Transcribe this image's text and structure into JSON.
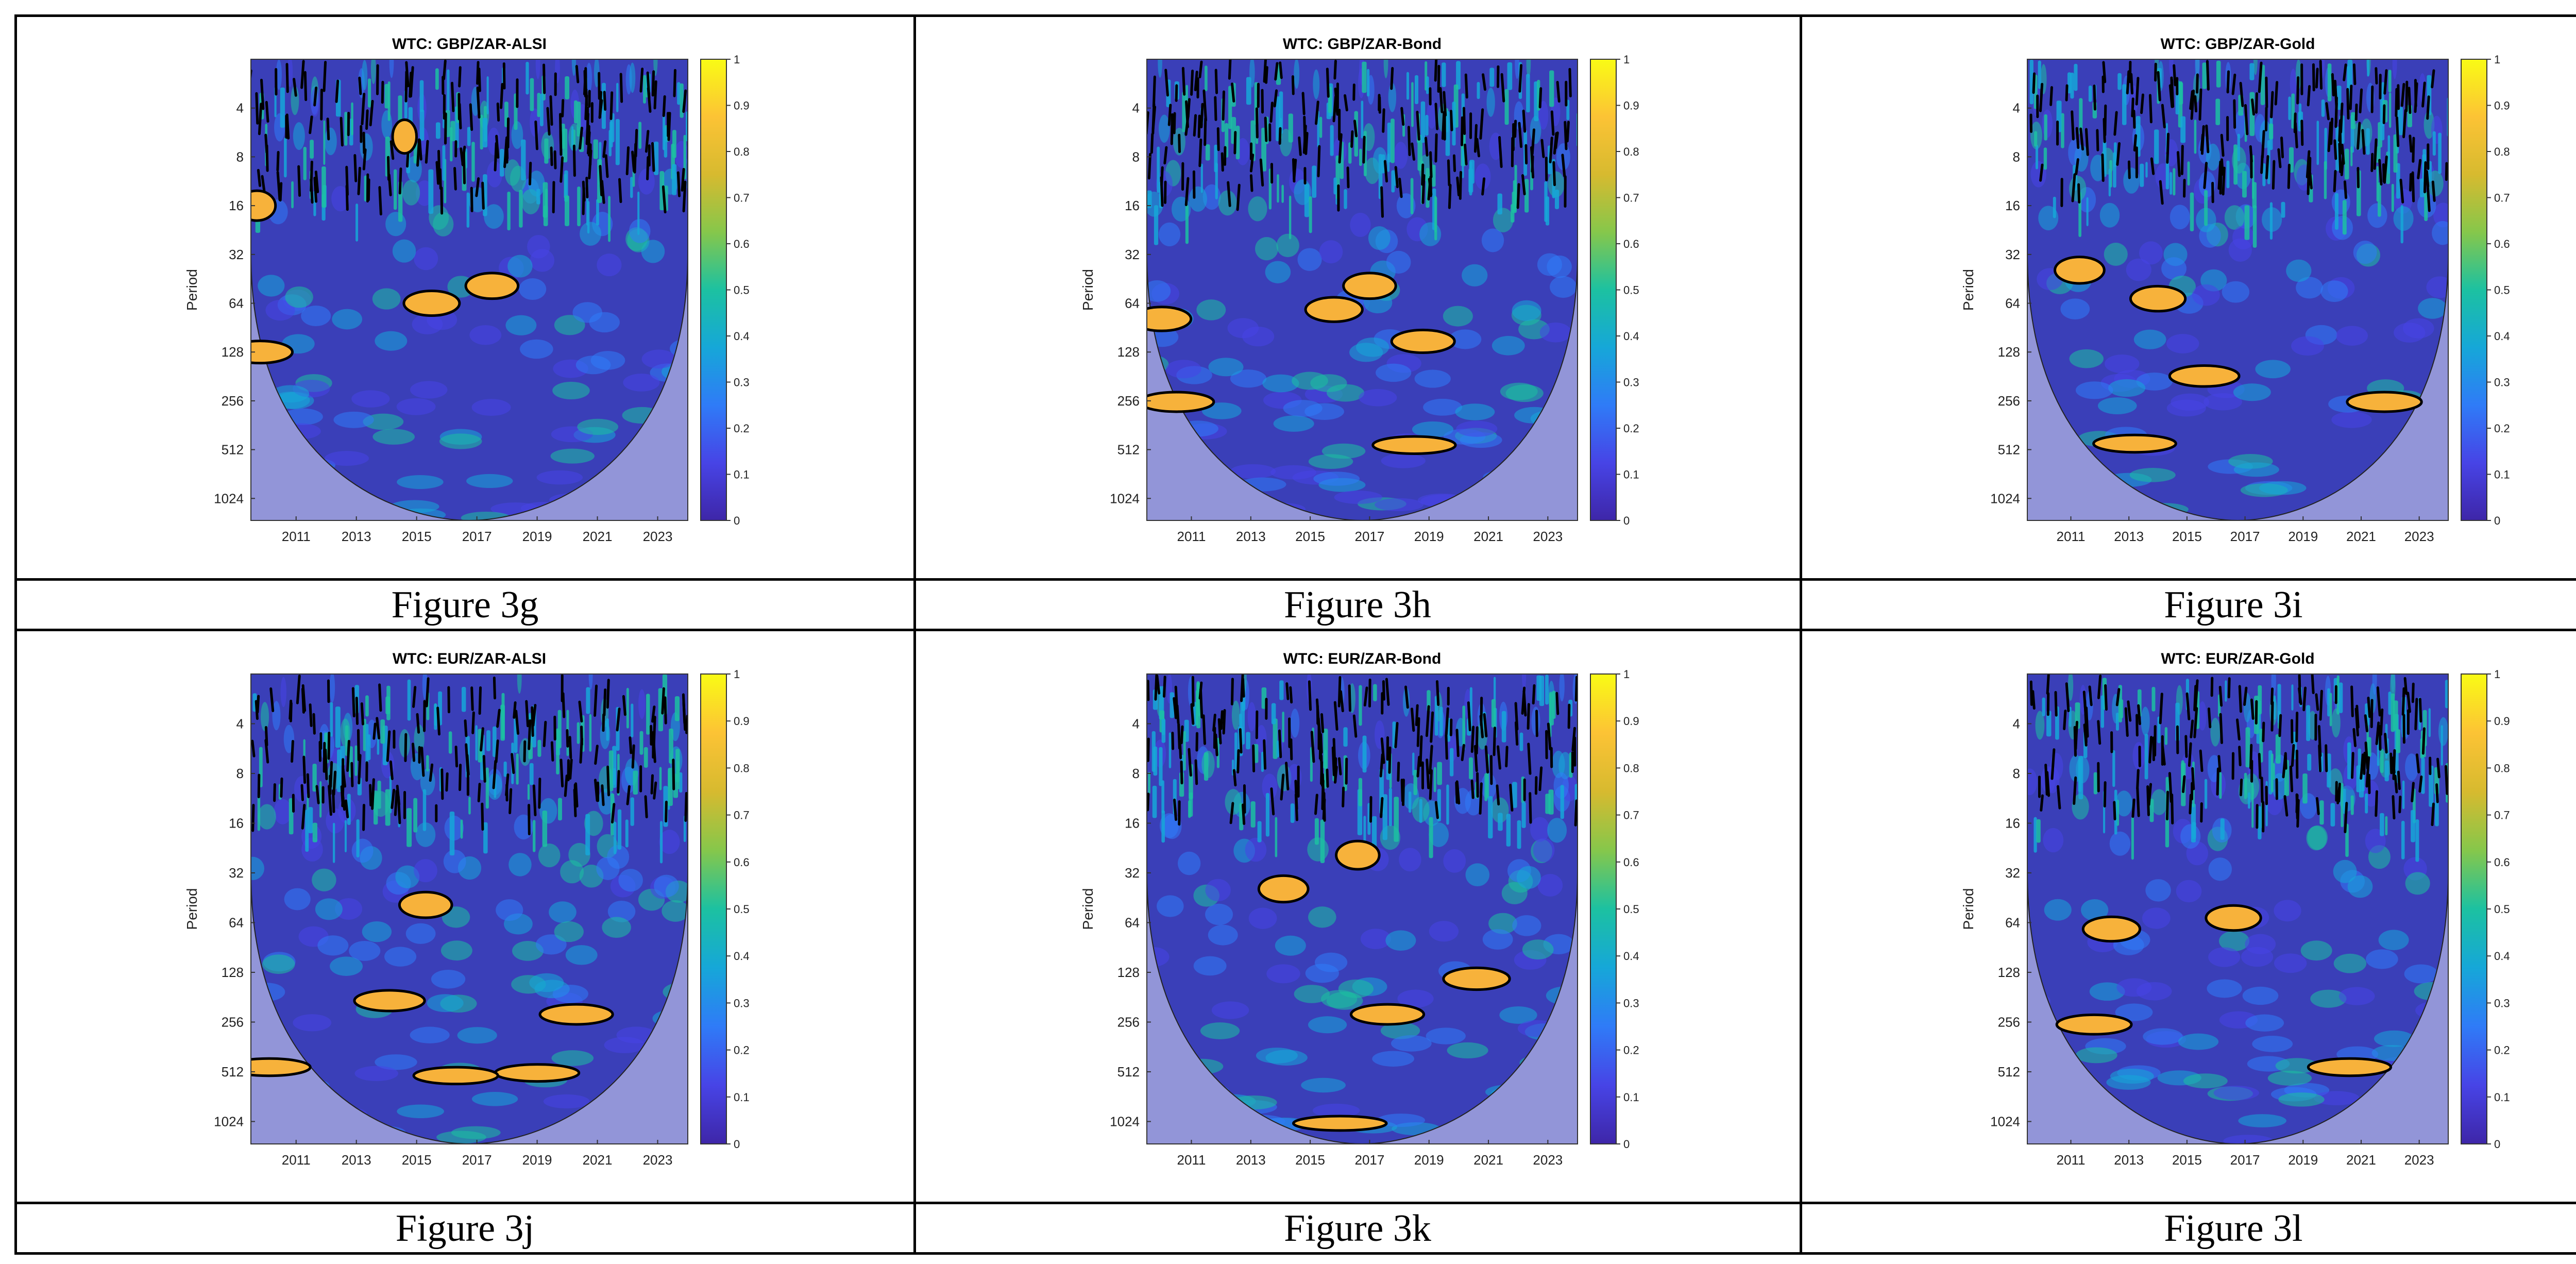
{
  "figure_table": {
    "captions": [
      "Figure 3g",
      "Figure 3h",
      "Figure 3i",
      "Figure 3j",
      "Figure 3k",
      "Figure 3l"
    ]
  },
  "colormap": [
    "#3e26a8",
    "#4744e6",
    "#2f7bf7",
    "#16a7d8",
    "#1cc1a1",
    "#86c74b",
    "#d7ba2f",
    "#fcc335",
    "#f9fb15"
  ],
  "chart_data": [
    {
      "type": "heatmap",
      "title": "WTC: GBP/ZAR-ALSI",
      "ylabel": "Period",
      "x_ticks": [
        "2011",
        "2013",
        "2015",
        "2017",
        "2019",
        "2021",
        "2023"
      ],
      "y_ticks": [
        "4",
        "8",
        "16",
        "32",
        "64",
        "128",
        "256",
        "512",
        "1024"
      ],
      "colorbar_ticks": [
        "0",
        "0.1",
        "0.2",
        "0.3",
        "0.4",
        "0.5",
        "0.6",
        "0.7",
        "0.8",
        "0.9",
        "1"
      ],
      "xlim": [
        2009.5,
        2024
      ],
      "ylim": [
        2,
        1400
      ],
      "y_scale": "log2",
      "colorbar_range": [
        0,
        1
      ],
      "significant_regions": [
        {
          "year": 2009.7,
          "period": 16
        },
        {
          "year": 2009.8,
          "period": 128
        },
        {
          "year": 2015.5,
          "period": 64
        },
        {
          "year": 2017.5,
          "period": 50
        },
        {
          "year": 2014.6,
          "period": 6
        }
      ]
    },
    {
      "type": "heatmap",
      "title": "WTC: GBP/ZAR-Bond",
      "ylabel": "Period",
      "x_ticks": [
        "2011",
        "2013",
        "2015",
        "2017",
        "2019",
        "2021",
        "2023"
      ],
      "y_ticks": [
        "4",
        "8",
        "16",
        "32",
        "64",
        "128",
        "256",
        "512",
        "1024"
      ],
      "colorbar_ticks": [
        "0",
        "0.1",
        "0.2",
        "0.3",
        "0.4",
        "0.5",
        "0.6",
        "0.7",
        "0.8",
        "0.9",
        "1"
      ],
      "xlim": [
        2009.5,
        2024
      ],
      "ylim": [
        2,
        1400
      ],
      "y_scale": "log2",
      "colorbar_range": [
        0,
        1
      ],
      "significant_regions": [
        {
          "year": 2010,
          "period": 80
        },
        {
          "year": 2010.5,
          "period": 260
        },
        {
          "year": 2018.5,
          "period": 480
        },
        {
          "year": 2017,
          "period": 50
        },
        {
          "year": 2015.8,
          "period": 70
        },
        {
          "year": 2018.8,
          "period": 110
        }
      ]
    },
    {
      "type": "heatmap",
      "title": "WTC: GBP/ZAR-Gold",
      "ylabel": "Period",
      "x_ticks": [
        "2011",
        "2013",
        "2015",
        "2017",
        "2019",
        "2021",
        "2023"
      ],
      "y_ticks": [
        "4",
        "8",
        "16",
        "32",
        "64",
        "128",
        "256",
        "512",
        "1024"
      ],
      "colorbar_ticks": [
        "0",
        "0.1",
        "0.2",
        "0.3",
        "0.4",
        "0.5",
        "0.6",
        "0.7",
        "0.8",
        "0.9",
        "1"
      ],
      "xlim": [
        2009.5,
        2024
      ],
      "ylim": [
        2,
        1400
      ],
      "y_scale": "log2",
      "colorbar_range": [
        0,
        1
      ],
      "significant_regions": [
        {
          "year": 2015.6,
          "period": 180
        },
        {
          "year": 2011.3,
          "period": 40
        },
        {
          "year": 2013.2,
          "period": 470
        },
        {
          "year": 2014,
          "period": 60
        },
        {
          "year": 2021.8,
          "period": 260
        }
      ]
    },
    {
      "type": "heatmap",
      "title": "WTC: EUR/ZAR-ALSI",
      "ylabel": "Period",
      "x_ticks": [
        "2011",
        "2013",
        "2015",
        "2017",
        "2019",
        "2021",
        "2023"
      ],
      "y_ticks": [
        "4",
        "8",
        "16",
        "32",
        "64",
        "128",
        "256",
        "512",
        "1024"
      ],
      "colorbar_ticks": [
        "0",
        "0.1",
        "0.2",
        "0.3",
        "0.4",
        "0.5",
        "0.6",
        "0.7",
        "0.8",
        "0.9",
        "1"
      ],
      "xlim": [
        2009.5,
        2024
      ],
      "ylim": [
        2,
        1400
      ],
      "y_scale": "log2",
      "colorbar_range": [
        0,
        1
      ],
      "significant_regions": [
        {
          "year": 2014.1,
          "period": 190
        },
        {
          "year": 2020.3,
          "period": 230
        },
        {
          "year": 2019,
          "period": 520
        },
        {
          "year": 2016.3,
          "period": 540
        },
        {
          "year": 2015.3,
          "period": 50
        },
        {
          "year": 2010.1,
          "period": 480
        }
      ]
    },
    {
      "type": "heatmap",
      "title": "WTC: EUR/ZAR-Bond",
      "ylabel": "Period",
      "x_ticks": [
        "2011",
        "2013",
        "2015",
        "2017",
        "2019",
        "2021",
        "2023"
      ],
      "y_ticks": [
        "4",
        "8",
        "16",
        "32",
        "64",
        "128",
        "256",
        "512",
        "1024"
      ],
      "colorbar_ticks": [
        "0",
        "0.1",
        "0.2",
        "0.3",
        "0.4",
        "0.5",
        "0.6",
        "0.7",
        "0.8",
        "0.9",
        "1"
      ],
      "xlim": [
        2009.5,
        2024
      ],
      "ylim": [
        2,
        1400
      ],
      "y_scale": "log2",
      "colorbar_range": [
        0,
        1
      ],
      "significant_regions": [
        {
          "year": 2016,
          "period": 1050
        },
        {
          "year": 2017.6,
          "period": 230
        },
        {
          "year": 2016.6,
          "period": 25
        },
        {
          "year": 2014.1,
          "period": 40
        },
        {
          "year": 2020.6,
          "period": 140
        }
      ]
    },
    {
      "type": "heatmap",
      "title": "WTC: EUR/ZAR-Gold",
      "ylabel": "Period",
      "x_ticks": [
        "2011",
        "2013",
        "2015",
        "2017",
        "2019",
        "2021",
        "2023"
      ],
      "y_ticks": [
        "4",
        "8",
        "16",
        "32",
        "64",
        "128",
        "256",
        "512",
        "1024"
      ],
      "colorbar_ticks": [
        "0",
        "0.1",
        "0.2",
        "0.3",
        "0.4",
        "0.5",
        "0.6",
        "0.7",
        "0.8",
        "0.9",
        "1"
      ],
      "xlim": [
        2009.5,
        2024
      ],
      "ylim": [
        2,
        1400
      ],
      "y_scale": "log2",
      "colorbar_range": [
        0,
        1
      ],
      "significant_regions": [
        {
          "year": 2012.4,
          "period": 70
        },
        {
          "year": 2011.8,
          "period": 265
        },
        {
          "year": 2016.6,
          "period": 60
        },
        {
          "year": 2020.6,
          "period": 480
        }
      ]
    }
  ]
}
